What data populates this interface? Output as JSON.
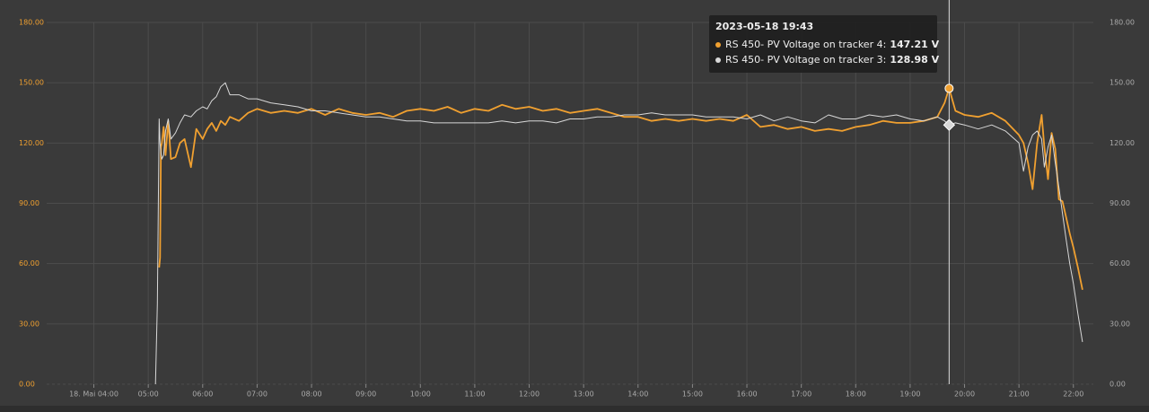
{
  "chart_data": {
    "type": "line",
    "x": [
      "05:08",
      "05:10",
      "05:12",
      "05:13",
      "05:14",
      "05:15",
      "05:17",
      "05:19",
      "05:22",
      "05:25",
      "05:30",
      "05:35",
      "05:40",
      "05:47",
      "05:53",
      "06:00",
      "06:05",
      "06:10",
      "06:15",
      "06:20",
      "06:25",
      "06:30",
      "06:40",
      "06:50",
      "07:00",
      "07:15",
      "07:30",
      "07:45",
      "08:00",
      "08:15",
      "08:30",
      "08:45",
      "09:00",
      "09:15",
      "09:30",
      "09:45",
      "10:00",
      "10:15",
      "10:30",
      "10:45",
      "11:00",
      "11:15",
      "11:30",
      "11:45",
      "12:00",
      "12:15",
      "12:30",
      "12:45",
      "13:00",
      "13:15",
      "13:30",
      "13:45",
      "14:00",
      "14:15",
      "14:30",
      "14:45",
      "15:00",
      "15:15",
      "15:30",
      "15:45",
      "16:00",
      "16:15",
      "16:30",
      "16:45",
      "17:00",
      "17:15",
      "17:30",
      "17:45",
      "18:00",
      "18:15",
      "18:30",
      "18:45",
      "19:00",
      "19:15",
      "19:30",
      "19:38",
      "19:43",
      "19:50",
      "20:00",
      "20:15",
      "20:30",
      "20:45",
      "21:00",
      "21:05",
      "21:10",
      "21:15",
      "21:20",
      "21:25",
      "21:28",
      "21:32",
      "21:36",
      "21:40",
      "21:44",
      "21:48",
      "21:52",
      "21:56",
      "22:00",
      "22:05",
      "22:10"
    ],
    "series": [
      {
        "name": "RS 450- PV Voltage on tracker 4",
        "color": "#f0a030",
        "values": [
          null,
          null,
          58,
          63,
          118,
          120,
          128,
          114,
          131,
          112,
          113,
          120,
          122,
          108,
          127,
          122,
          127,
          130,
          126,
          131,
          129,
          133,
          131,
          135,
          137,
          135,
          136,
          135,
          137,
          134,
          137,
          135,
          134,
          135,
          133,
          136,
          137,
          136,
          138,
          135,
          137,
          136,
          139,
          137,
          138,
          136,
          137,
          135,
          136,
          137,
          135,
          133,
          133,
          131,
          132,
          131,
          132,
          131,
          132,
          131,
          134,
          128,
          129,
          127,
          128,
          126,
          127,
          126,
          128,
          129,
          131,
          130,
          130,
          131,
          133,
          140,
          147.21,
          136,
          134,
          133,
          135,
          131,
          124,
          120,
          110,
          97,
          120,
          134,
          118,
          102,
          125,
          117,
          92,
          91,
          83,
          75,
          68,
          58,
          47
        ]
      },
      {
        "name": "RS 450- PV Voltage on tracker 3",
        "color": "#d8d8d8",
        "values": [
          0,
          40,
          132,
          120,
          115,
          112,
          114,
          126,
          132,
          122,
          125,
          130,
          134,
          133,
          136,
          138,
          137,
          141,
          143,
          148,
          150,
          144,
          144,
          142,
          142,
          140,
          139,
          138,
          136,
          136,
          135,
          134,
          133,
          133,
          132,
          131,
          131,
          130,
          130,
          130,
          130,
          130,
          131,
          130,
          131,
          131,
          130,
          132,
          132,
          133,
          133,
          134,
          134,
          135,
          134,
          134,
          134,
          133,
          133,
          133,
          132,
          134,
          131,
          133,
          131,
          130,
          134,
          132,
          132,
          134,
          133,
          134,
          132,
          131,
          133,
          131,
          128.98,
          130,
          129,
          127,
          129,
          126,
          120,
          106,
          118,
          124,
          126,
          122,
          108,
          118,
          124,
          110,
          98,
          85,
          72,
          60,
          50,
          35,
          21
        ]
      }
    ],
    "xlim": [
      "03:08",
      "22:22"
    ],
    "xticks": [
      {
        "value": "04:00",
        "label": "18. Mai 04:00"
      },
      "05:00",
      "06:00",
      "07:00",
      "08:00",
      "09:00",
      "10:00",
      "11:00",
      "12:00",
      "13:00",
      "14:00",
      "15:00",
      "16:00",
      "17:00",
      "18:00",
      "19:00",
      "20:00",
      "21:00",
      "22:00"
    ],
    "ylim": [
      0,
      180
    ],
    "yticks": [
      {
        "value": 0,
        "label": "0.00"
      },
      {
        "value": 30,
        "label": "30.00"
      },
      {
        "value": 60,
        "label": "60.00"
      },
      {
        "value": 90,
        "label": "90.00"
      },
      {
        "value": 120,
        "label": "120.00"
      },
      {
        "value": 150,
        "label": "150.00"
      },
      {
        "value": 180,
        "label": "180.00"
      }
    ],
    "y2lim": [
      0,
      180
    ],
    "y2ticks": [
      {
        "value": 0,
        "label": "0.00"
      },
      {
        "value": 30,
        "label": "30.00"
      },
      {
        "value": 60,
        "label": "60.00"
      },
      {
        "value": 90,
        "label": "90.00"
      },
      {
        "value": 120,
        "label": "120.00"
      },
      {
        "value": 150,
        "label": "150.00"
      },
      {
        "value": 180,
        "label": "180.00"
      }
    ],
    "grid": true,
    "tooltip": {
      "title": "2023-05-18 19:43",
      "separator": ":",
      "items": [
        {
          "value": 147.21,
          "label": "147.21 V"
        },
        {
          "value": 128.98,
          "label": "128.98 V"
        }
      ]
    }
  }
}
